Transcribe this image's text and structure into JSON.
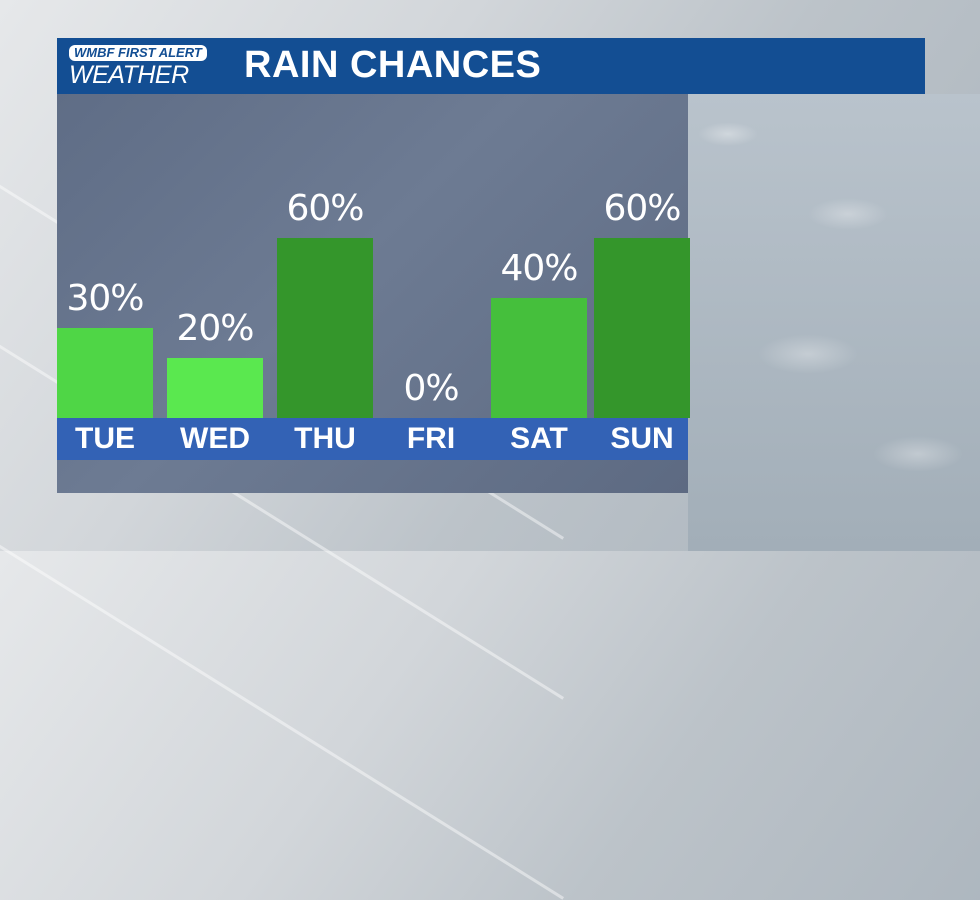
{
  "header": {
    "logo_line1": "WMBF FIRST ALERT",
    "logo_line2": "WEATHER",
    "title": "RAIN CHANCES"
  },
  "colors": {
    "header": "#134e93",
    "band": "#3362b5",
    "panel": "#66748c"
  },
  "chart_data": {
    "type": "bar",
    "title": "RAIN CHANCES",
    "categories": [
      "TUE",
      "WED",
      "THU",
      "FRI",
      "SAT",
      "SUN"
    ],
    "values": [
      30,
      20,
      60,
      0,
      40,
      60
    ],
    "labels": [
      "30%",
      "20%",
      "60%",
      "0%",
      "40%",
      "60%"
    ],
    "bar_colors": [
      "#4fd646",
      "#5ae84f",
      "#34962b",
      "#34962b",
      "#45bf3c",
      "#34962b"
    ],
    "xlabel": "",
    "ylabel": "",
    "ylim": [
      0,
      100
    ],
    "grid": false
  }
}
